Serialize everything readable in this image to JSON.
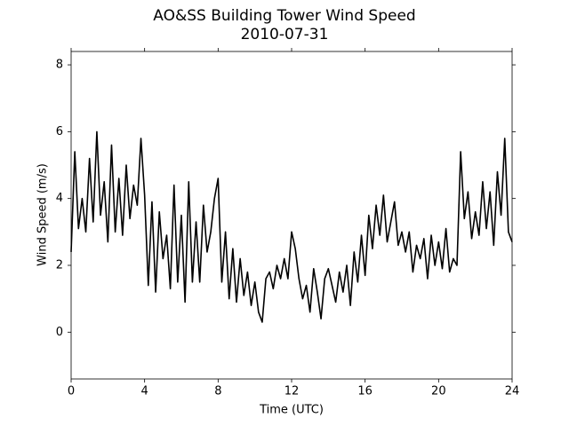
{
  "chart_data": {
    "type": "line",
    "title": "AO&SS Building Tower Wind Speed",
    "subtitle": "2010-07-31",
    "x_label": "Time (UTC)",
    "y_label": "Wind Speed (m/s)",
    "x": [
      0,
      0.2,
      0.4,
      0.6,
      0.8,
      1,
      1.2,
      1.4,
      1.6,
      1.8,
      2,
      2.2,
      2.4,
      2.6,
      2.8,
      3,
      3.2,
      3.4,
      3.6,
      3.8,
      4,
      4.2,
      4.4,
      4.6,
      4.8,
      5,
      5.2,
      5.4,
      5.6,
      5.8,
      6,
      6.2,
      6.4,
      6.6,
      6.8,
      7,
      7.2,
      7.4,
      7.6,
      7.8,
      8,
      8.2,
      8.4,
      8.6,
      8.8,
      9,
      9.2,
      9.4,
      9.6,
      9.8,
      10,
      10.2,
      10.4,
      10.6,
      10.8,
      11,
      11.2,
      11.4,
      11.6,
      11.8,
      12,
      12.2,
      12.4,
      12.6,
      12.8,
      13,
      13.2,
      13.4,
      13.6,
      13.8,
      14,
      14.2,
      14.4,
      14.6,
      14.8,
      15,
      15.2,
      15.4,
      15.6,
      15.8,
      16,
      16.2,
      16.4,
      16.6,
      16.8,
      17,
      17.2,
      17.4,
      17.6,
      17.8,
      18,
      18.2,
      18.4,
      18.6,
      18.8,
      19,
      19.2,
      19.4,
      19.6,
      19.8,
      20,
      20.2,
      20.4,
      20.6,
      20.8,
      21,
      21.2,
      21.4,
      21.6,
      21.8,
      22,
      22.2,
      22.4,
      22.6,
      22.8,
      23,
      23.2,
      23.4,
      23.6,
      23.8,
      24
    ],
    "series": [
      {
        "name": "Wind Speed",
        "color": "#000000",
        "values": [
          2.4,
          5.4,
          3.1,
          4.0,
          3.0,
          5.2,
          3.3,
          6.0,
          3.5,
          4.5,
          2.7,
          5.6,
          3.0,
          4.6,
          2.9,
          5.0,
          3.4,
          4.4,
          3.8,
          5.8,
          4.1,
          1.4,
          3.9,
          1.2,
          3.6,
          2.2,
          2.9,
          1.3,
          4.4,
          1.5,
          3.5,
          0.9,
          4.5,
          1.5,
          3.3,
          1.5,
          3.8,
          2.4,
          3.0,
          4.0,
          4.6,
          1.5,
          3.0,
          1.0,
          2.5,
          0.9,
          2.2,
          1.1,
          1.8,
          0.8,
          1.5,
          0.6,
          0.3,
          1.6,
          1.8,
          1.3,
          2.0,
          1.6,
          2.2,
          1.6,
          3.0,
          2.5,
          1.6,
          1.0,
          1.4,
          0.6,
          1.9,
          1.2,
          0.4,
          1.6,
          1.9,
          1.4,
          0.9,
          1.8,
          1.2,
          2.0,
          0.8,
          2.4,
          1.5,
          2.9,
          1.7,
          3.5,
          2.5,
          3.8,
          2.9,
          4.1,
          2.7,
          3.3,
          3.9,
          2.6,
          3.0,
          2.4,
          3.0,
          1.8,
          2.6,
          2.2,
          2.8,
          1.6,
          2.9,
          2.0,
          2.7,
          1.9,
          3.1,
          1.8,
          2.2,
          2.0,
          5.4,
          3.4,
          4.2,
          2.8,
          3.6,
          2.9,
          4.5,
          3.1,
          4.2,
          2.6,
          4.8,
          3.5,
          5.8,
          3.0,
          2.7
        ]
      }
    ],
    "xlim": [
      0,
      24
    ],
    "xticks": [
      0,
      4,
      8,
      12,
      16,
      20,
      24
    ],
    "ylim": [
      -1.4,
      8.4
    ],
    "yticks": [
      0,
      2,
      4,
      6,
      8
    ],
    "grid": false
  }
}
